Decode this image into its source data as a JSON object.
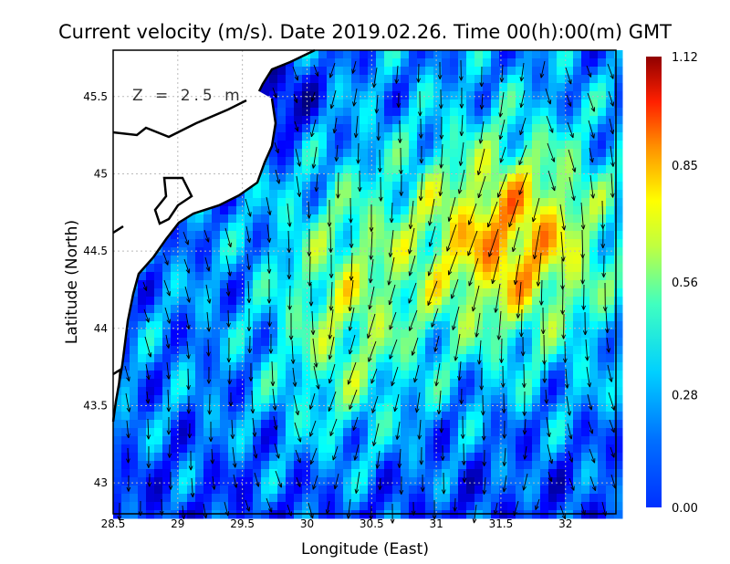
{
  "chart_data": {
    "type": "heatmap",
    "title": "Current velocity (m/s). Date 2019.02.26. Time 00(h):00(m) GMT",
    "xlabel": "Longitude (East)",
    "ylabel": "Latitude (North)",
    "annotation": "Z = 2.5 m",
    "xlim": [
      28.5,
      32.39
    ],
    "ylim": [
      42.8,
      45.8
    ],
    "xticks": [
      "28.5",
      "29",
      "29.5",
      "30",
      "30.5",
      "31",
      "31.5",
      "32"
    ],
    "xtick_values": [
      28.5,
      29,
      29.5,
      30,
      30.5,
      31,
      31.5,
      32
    ],
    "yticks": [
      "43",
      "43.5",
      "44",
      "44.5",
      "45",
      "45.5"
    ],
    "ytick_values": [
      43,
      43.5,
      44,
      44.5,
      45,
      45.5
    ],
    "colorbar": {
      "ticks": [
        "1.12",
        "0.85",
        "0.56",
        "0.28",
        "0.00"
      ],
      "tick_values": [
        1.12,
        0.85,
        0.56,
        0.28,
        0.0
      ],
      "range": [
        0,
        1.12
      ]
    },
    "grid": true
  }
}
